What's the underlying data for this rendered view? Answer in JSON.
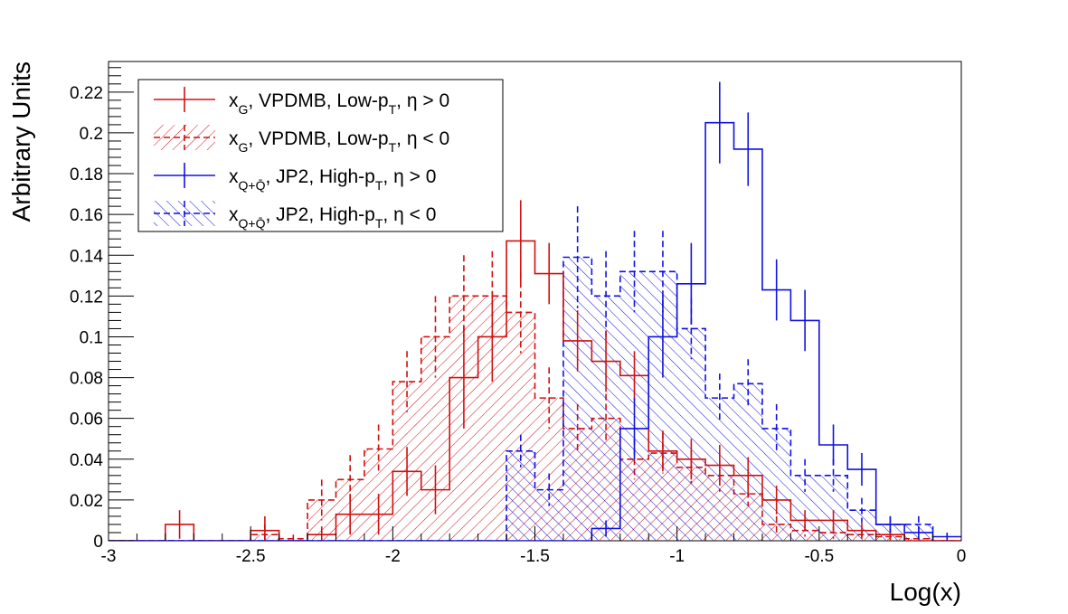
{
  "chart_data": {
    "type": "histogram",
    "xlabel": "Log(x)",
    "ylabel": "Arbitrary Units",
    "xlim": [
      -3,
      0
    ],
    "ylim": [
      0,
      0.235
    ],
    "bin_width": 0.1,
    "xticks": [
      -3,
      -2.5,
      -2,
      -1.5,
      -1,
      -0.5,
      0
    ],
    "xtick_labels": [
      "-3",
      "-2.5",
      "-2",
      "-1.5",
      "-1",
      "-0.5",
      "0"
    ],
    "yticks": [
      0,
      0.02,
      0.04,
      0.06,
      0.08,
      0.1,
      0.12,
      0.14,
      0.16,
      0.18,
      0.2,
      0.22
    ],
    "ytick_labels": [
      "0",
      "0.02",
      "0.04",
      "0.06",
      "0.08",
      "0.1",
      "0.12",
      "0.14",
      "0.16",
      "0.18",
      "0.2",
      "0.22"
    ],
    "legend_position": "top-left",
    "colors": {
      "red": "#d01010",
      "blue": "#1010e0"
    },
    "series": [
      {
        "legend": {
          "main": "x",
          "sub": "G",
          "mid": ", VPDMB, Low-p",
          "sub2": "T",
          "end": ", η > 0"
        },
        "color": "red",
        "line": "solid",
        "hatch": "none",
        "x": [
          -2.95,
          -2.85,
          -2.75,
          -2.65,
          -2.55,
          -2.45,
          -2.35,
          -2.25,
          -2.15,
          -2.05,
          -1.95,
          -1.85,
          -1.75,
          -1.65,
          -1.55,
          -1.45,
          -1.35,
          -1.25,
          -1.15,
          -1.05,
          -0.95,
          -0.85,
          -0.75,
          -0.65,
          -0.55,
          -0.45,
          -0.35,
          -0.25,
          -0.15,
          -0.05
        ],
        "values": [
          0,
          0,
          0.008,
          0,
          0,
          0.005,
          0,
          0.003,
          0.013,
          0.013,
          0.034,
          0.025,
          0.08,
          0.1,
          0.147,
          0.131,
          0.098,
          0.088,
          0.081,
          0.044,
          0.04,
          0.037,
          0.032,
          0.02,
          0.01,
          0.01,
          0.005,
          0.003,
          0,
          0
        ],
        "errors": [
          0,
          0,
          0.007,
          0,
          0,
          0.007,
          0,
          0.004,
          0.01,
          0.01,
          0.012,
          0.012,
          0.025,
          0.022,
          0.02,
          0.015,
          0.015,
          0.015,
          0.012,
          0.01,
          0.01,
          0.01,
          0.009,
          0.007,
          0.005,
          0.005,
          0.004,
          0.003,
          0,
          0
        ]
      },
      {
        "legend": {
          "main": "x",
          "sub": "G",
          "mid": ", VPDMB, Low-p",
          "sub2": "T",
          "end": ", η < 0"
        },
        "color": "red",
        "line": "dashed",
        "hatch": "forward",
        "x": [
          -2.95,
          -2.85,
          -2.75,
          -2.65,
          -2.55,
          -2.45,
          -2.35,
          -2.25,
          -2.15,
          -2.05,
          -1.95,
          -1.85,
          -1.75,
          -1.65,
          -1.55,
          -1.45,
          -1.35,
          -1.25,
          -1.15,
          -1.05,
          -0.95,
          -0.85,
          -0.75,
          -0.65,
          -0.55,
          -0.45,
          -0.35,
          -0.25,
          -0.15,
          -0.05
        ],
        "values": [
          0,
          0,
          0,
          0,
          0,
          0.003,
          0.001,
          0.02,
          0.03,
          0.045,
          0.078,
          0.1,
          0.12,
          0.12,
          0.112,
          0.07,
          0.055,
          0.06,
          0.04,
          0.043,
          0.036,
          0.032,
          0.023,
          0.008,
          0.005,
          0.004,
          0.003,
          0.002,
          0.001,
          0
        ],
        "errors": [
          0,
          0,
          0,
          0,
          0,
          0.005,
          0.002,
          0.01,
          0.012,
          0.012,
          0.015,
          0.02,
          0.02,
          0.022,
          0.02,
          0.015,
          0.012,
          0.012,
          0.01,
          0.01,
          0.008,
          0.008,
          0.006,
          0.004,
          0.003,
          0.003,
          0.002,
          0.002,
          0.001,
          0
        ]
      },
      {
        "legend": {
          "main": "x",
          "sub": "Q+Q̄",
          "mid": ", JP2, High-p",
          "sub2": "T",
          "end": ", η > 0"
        },
        "color": "blue",
        "line": "solid",
        "hatch": "none",
        "x": [
          -2.95,
          -2.85,
          -2.75,
          -2.65,
          -2.55,
          -2.45,
          -2.35,
          -2.25,
          -2.15,
          -2.05,
          -1.95,
          -1.85,
          -1.75,
          -1.65,
          -1.55,
          -1.45,
          -1.35,
          -1.25,
          -1.15,
          -1.05,
          -0.95,
          -0.85,
          -0.75,
          -0.65,
          -0.55,
          -0.45,
          -0.35,
          -0.25,
          -0.15,
          -0.05
        ],
        "values": [
          0,
          0,
          0,
          0,
          0,
          0,
          0,
          0,
          0,
          0,
          0,
          0,
          0,
          0,
          0,
          0,
          0,
          0.006,
          0.055,
          0.1,
          0.126,
          0.205,
          0.192,
          0.123,
          0.108,
          0.047,
          0.035,
          0.008,
          0.004,
          0.002
        ],
        "errors": [
          0,
          0,
          0,
          0,
          0,
          0,
          0,
          0,
          0,
          0,
          0,
          0,
          0,
          0,
          0,
          0,
          0,
          0.004,
          0.015,
          0.02,
          0.02,
          0.02,
          0.018,
          0.015,
          0.015,
          0.01,
          0.008,
          0.004,
          0.003,
          0.002
        ]
      },
      {
        "legend": {
          "main": "x",
          "sub": "Q+Q̄",
          "mid": ", JP2, High-p",
          "sub2": "T",
          "end": ", η < 0"
        },
        "color": "blue",
        "line": "dashed",
        "hatch": "backward",
        "x": [
          -2.95,
          -2.85,
          -2.75,
          -2.65,
          -2.55,
          -2.45,
          -2.35,
          -2.25,
          -2.15,
          -2.05,
          -1.95,
          -1.85,
          -1.75,
          -1.65,
          -1.55,
          -1.45,
          -1.35,
          -1.25,
          -1.15,
          -1.05,
          -0.95,
          -0.85,
          -0.75,
          -0.65,
          -0.55,
          -0.45,
          -0.35,
          -0.25,
          -0.15,
          -0.05
        ],
        "values": [
          0,
          0,
          0,
          0,
          0,
          0,
          0,
          0,
          0,
          0,
          0,
          0,
          0,
          0,
          0.044,
          0.025,
          0.139,
          0.12,
          0.132,
          0.132,
          0.104,
          0.07,
          0.077,
          0.055,
          0.032,
          0.032,
          0.015,
          0.008,
          0.008,
          0
        ],
        "errors": [
          0,
          0,
          0,
          0,
          0,
          0,
          0,
          0,
          0,
          0,
          0,
          0,
          0,
          0,
          0.008,
          0.008,
          0.025,
          0.022,
          0.02,
          0.02,
          0.015,
          0.012,
          0.012,
          0.012,
          0.008,
          0.008,
          0.006,
          0.004,
          0.004,
          0
        ]
      }
    ]
  }
}
